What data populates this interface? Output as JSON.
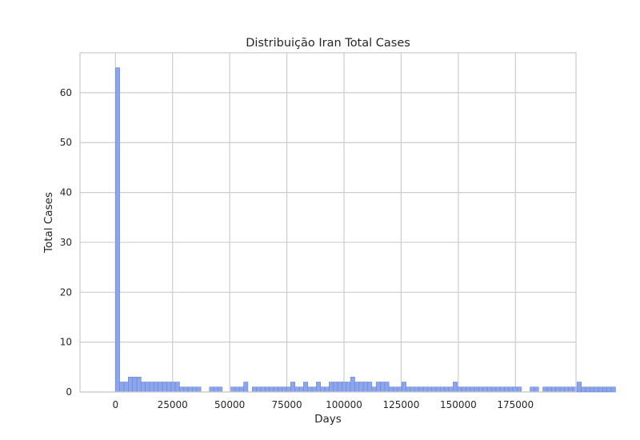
{
  "chart_data": {
    "type": "bar",
    "title": "Distribuição Iran Total Cases",
    "xlabel": "Days",
    "ylabel": "Total Cases",
    "xlim": [
      -15500,
      201500
    ],
    "ylim": [
      0,
      68
    ],
    "grid": true,
    "x_ticks": [
      0,
      25000,
      50000,
      75000,
      100000,
      125000,
      150000,
      175000
    ],
    "x_tick_labels": [
      "0",
      "25000",
      "50000",
      "75000",
      "100000",
      "125000",
      "150000",
      "175000"
    ],
    "y_ticks": [
      0,
      10,
      20,
      30,
      40,
      50,
      60
    ],
    "y_tick_labels": [
      "0",
      "10",
      "20",
      "30",
      "40",
      "50",
      "60"
    ],
    "bin_start": 0,
    "bin_width": 1870,
    "values": [
      65,
      2,
      2,
      3,
      3,
      3,
      2,
      2,
      2,
      2,
      2,
      2,
      2,
      2,
      2,
      1,
      1,
      1,
      1,
      1,
      0,
      0,
      1,
      1,
      1,
      0,
      0,
      1,
      1,
      1,
      2,
      0,
      1,
      1,
      1,
      1,
      1,
      1,
      1,
      1,
      1,
      2,
      1,
      1,
      2,
      1,
      1,
      2,
      1,
      1,
      2,
      2,
      2,
      2,
      2,
      3,
      2,
      2,
      2,
      2,
      1,
      2,
      2,
      2,
      1,
      1,
      1,
      2,
      1,
      1,
      1,
      1,
      1,
      1,
      1,
      1,
      1,
      1,
      1,
      2,
      1,
      1,
      1,
      1,
      1,
      1,
      1,
      1,
      1,
      1,
      1,
      1,
      1,
      1,
      1,
      0,
      0,
      1,
      1,
      0,
      1,
      1,
      1,
      1,
      1,
      1,
      1,
      1,
      2,
      1,
      1,
      1,
      1,
      1,
      1,
      1,
      1
    ]
  },
  "colors": {
    "bar_fill": "#8ba6ef",
    "bar_edge": "#6d86c9",
    "grid": "#cccccc",
    "axes_frame": "#cccccc",
    "text": "#262626"
  }
}
